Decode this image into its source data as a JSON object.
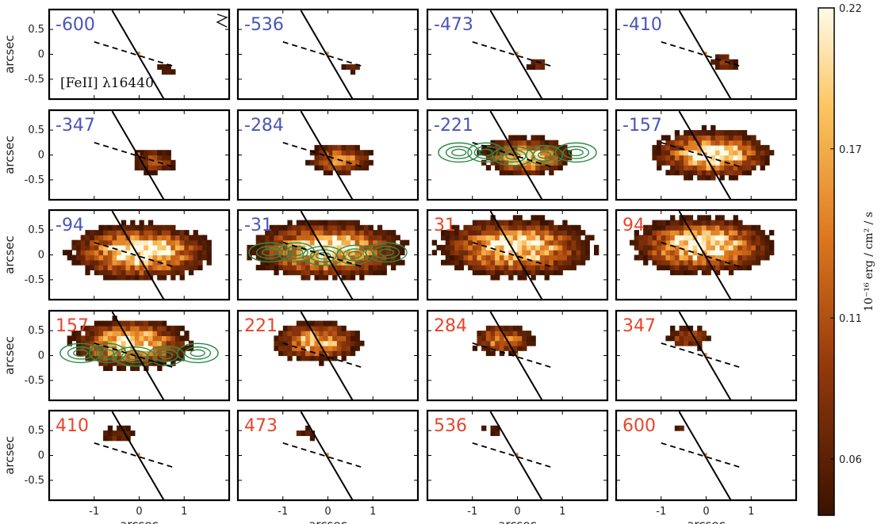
{
  "chart_data": {
    "type": "heatmap",
    "title": "",
    "line_label": "[FeII] λ16440",
    "xlabel": "arcsec",
    "ylabel": "arcsec",
    "xlim": [
      -2,
      2
    ],
    "ylim": [
      -0.9,
      0.9
    ],
    "xticks": [
      "-1",
      "0",
      "1"
    ],
    "yticks": [
      "0.5",
      "0",
      "-0.5"
    ],
    "colorbar": {
      "label": "10⁻¹⁶ erg / cm² / s",
      "ticks": [
        "0.22",
        "0.17",
        "0.11",
        "0.06"
      ],
      "range": [
        0.04,
        0.22
      ]
    },
    "velocities": [
      -600,
      -536,
      -473,
      -410,
      -347,
      -284,
      -221,
      -157,
      -94,
      -31,
      31,
      94,
      157,
      221,
      284,
      347,
      410,
      473,
      536,
      600
    ],
    "contour_panels": [
      -221,
      -31,
      157
    ],
    "colors": {
      "blueshift_label": "#4a55b8",
      "redshift_label": "#e8452a",
      "contour": "#2e8b47",
      "cmap_low": "#3a1200",
      "cmap_high": "#fffbe8"
    }
  }
}
